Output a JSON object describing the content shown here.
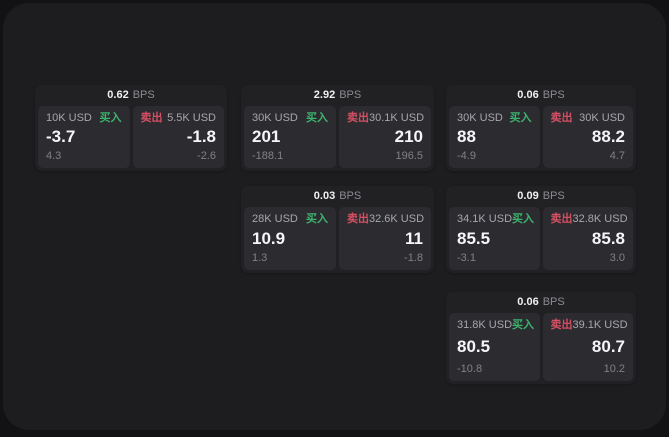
{
  "labels": {
    "bps": "BPS",
    "buy": "买入",
    "sell": "卖出"
  },
  "colors": {
    "buy_green": "#3cb46e",
    "sell_red": "#d44f63",
    "price_white": "#f6f6f8",
    "muted_gray": "#a6a6ac",
    "stage_bg": "#1d1d20",
    "card_bg": "#212124",
    "panel_bg": "#2c2c30"
  },
  "cards": [
    {
      "spread_bps": "0.62",
      "bid": {
        "size": "10K USD",
        "price": "-3.7",
        "delta": "4.3"
      },
      "ask": {
        "size": "5.5K USD",
        "price": "-1.8",
        "delta": "-2.6"
      }
    },
    {
      "spread_bps": "2.92",
      "bid": {
        "size": "30K USD",
        "price": "201",
        "delta": "-188.1"
      },
      "ask": {
        "size": "30.1K USD",
        "price": "210",
        "delta": "196.5"
      }
    },
    {
      "spread_bps": "0.06",
      "bid": {
        "size": "30K USD",
        "price": "88",
        "delta": "-4.9"
      },
      "ask": {
        "size": "30K USD",
        "price": "88.2",
        "delta": "4.7"
      }
    },
    {
      "spread_bps": "0.03",
      "bid": {
        "size": "28K USD",
        "price": "10.9",
        "delta": "1.3"
      },
      "ask": {
        "size": "32.6K USD",
        "price": "11",
        "delta": "-1.8"
      }
    },
    {
      "spread_bps": "0.09",
      "bid": {
        "size": "34.1K USD",
        "price": "85.5",
        "delta": "-3.1"
      },
      "ask": {
        "size": "32.8K USD",
        "price": "85.8",
        "delta": "3.0"
      }
    },
    {
      "spread_bps": "0.06",
      "bid": {
        "size": "31.8K USD",
        "price": "80.5",
        "delta": "-10.8"
      },
      "ask": {
        "size": "39.1K USD",
        "price": "80.7",
        "delta": "10.2"
      }
    }
  ]
}
